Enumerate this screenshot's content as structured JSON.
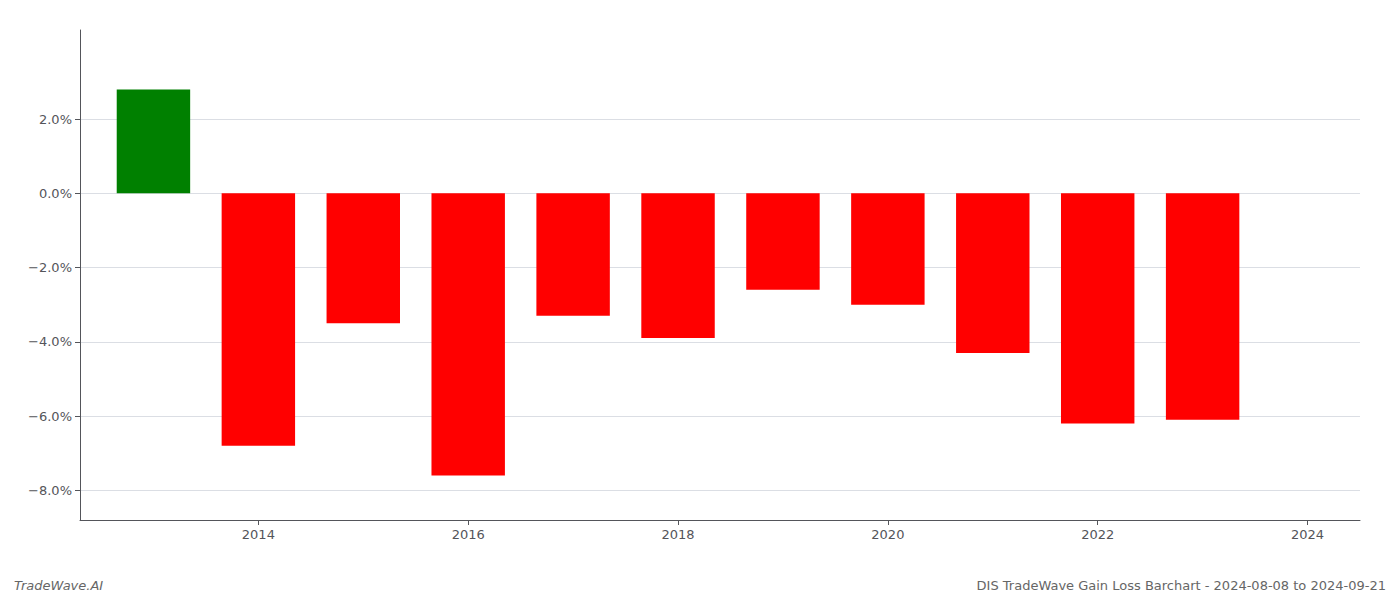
{
  "chart_data": {
    "type": "bar",
    "x": [
      2013,
      2014,
      2015,
      2016,
      2017,
      2018,
      2019,
      2020,
      2021,
      2022,
      2023
    ],
    "values": [
      0.028,
      -0.068,
      -0.035,
      -0.076,
      -0.033,
      -0.039,
      -0.026,
      -0.03,
      -0.043,
      -0.062,
      -0.061
    ],
    "colors": [
      "#008000",
      "#ff0000",
      "#ff0000",
      "#ff0000",
      "#ff0000",
      "#ff0000",
      "#ff0000",
      "#ff0000",
      "#ff0000",
      "#ff0000",
      "#ff0000"
    ],
    "xlim": [
      2012.3,
      2024.5
    ],
    "xticks": [
      2014,
      2016,
      2018,
      2020,
      2022,
      2024
    ],
    "ylim": [
      -0.088,
      0.044
    ],
    "yticks": [
      {
        "value": -0.08,
        "label": "−8.0%"
      },
      {
        "value": -0.06,
        "label": "−6.0%"
      },
      {
        "value": -0.04,
        "label": "−4.0%"
      },
      {
        "value": -0.02,
        "label": "−2.0%"
      },
      {
        "value": 0.0,
        "label": "0.0%"
      },
      {
        "value": 0.02,
        "label": "2.0%"
      }
    ],
    "grid": true,
    "annotations": [
      "TradeWave.AI",
      "DIS TradeWave Gain Loss Barchart - 2024-08-08 to 2024-09-21"
    ]
  }
}
